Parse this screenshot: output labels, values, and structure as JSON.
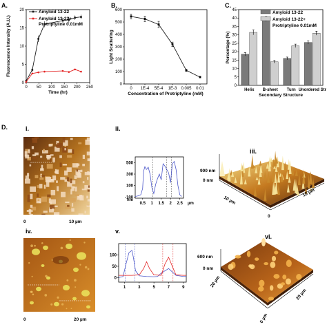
{
  "colors": {
    "series_black": "#1a1a1a",
    "series_red": "#e32323",
    "bar_dark": "#7a7a7a",
    "bar_light": "#cfcfcf",
    "profile_blue": "#4a56c9",
    "afm_dark": "#6b3a12",
    "afm_light": "#f2d87a"
  },
  "panels": {
    "A": "A.",
    "B": "B.",
    "C": "C.",
    "D": "D.",
    "i": "i.",
    "ii": "ii.",
    "iii": "iii.",
    "iv": "iv.",
    "v": "v.",
    "vi": "vi."
  },
  "chart_data": [
    {
      "id": "A",
      "type": "line",
      "xlabel": "Time (hr)",
      "ylabel": "Fluorescence Intensity (A.U.)",
      "xlim": [
        0,
        250
      ],
      "ylim": [
        0,
        20
      ],
      "xticks": [
        "0",
        "50",
        "100",
        "150",
        "200",
        "250"
      ],
      "yticks": [
        "0",
        "5",
        "10",
        "15",
        "20"
      ],
      "series": [
        {
          "name": "Amyloid 13-22",
          "x": [
            0,
            24,
            48,
            72,
            144,
            168,
            192,
            216
          ],
          "y": [
            0.5,
            3.5,
            12,
            16,
            17,
            17.2,
            17.8,
            18
          ],
          "err": [
            0.3,
            0.5,
            0.9,
            0.8,
            0.7,
            0.8,
            0.6,
            0.6
          ]
        },
        {
          "name": "Amyloid 13-22+ Protriptyline 0.01mM",
          "x": [
            0,
            24,
            48,
            72,
            144,
            168,
            192,
            216
          ],
          "y": [
            0.2,
            2.5,
            2.8,
            3.0,
            3.2,
            2.9,
            3.6,
            3.0
          ],
          "err": [
            0.1,
            0.2,
            0.2,
            0.2,
            0.2,
            0.2,
            0.2,
            0.2
          ]
        }
      ]
    },
    {
      "id": "B",
      "type": "line",
      "xlabel": "Concentration of Protriptyline (mM)",
      "ylabel": "Light Scattering",
      "categories": [
        "0",
        "1E-4",
        "5E-4",
        "1E-3",
        "0.005",
        "0.01"
      ],
      "ylim": [
        0,
        600
      ],
      "yticks": [
        "0",
        "100",
        "200",
        "300",
        "400",
        "500",
        "600"
      ],
      "series": [
        {
          "values": [
            545,
            525,
            480,
            320,
            110,
            55
          ],
          "err": [
            20,
            22,
            25,
            18,
            8,
            6
          ]
        }
      ]
    },
    {
      "id": "C",
      "type": "bar",
      "xlabel": "Secondary Structure",
      "ylabel": "Percentage (%)",
      "categories": [
        "Helix",
        "B-sheet",
        "Turn",
        "Unordered Str"
      ],
      "ylim": [
        0,
        45
      ],
      "yticks": [
        "0",
        "5",
        "10",
        "15",
        "20",
        "25",
        "30",
        "35",
        "40",
        "45"
      ],
      "series": [
        {
          "name": "Amyloid 13-22",
          "values": [
            18.5,
            39.5,
            16,
            25.5
          ],
          "err": [
            1,
            1.5,
            0.8,
            1
          ]
        },
        {
          "name": "Amyloid 13-22+ Protriptyline 0.01mM",
          "values": [
            31.5,
            14,
            23.5,
            31
          ],
          "err": [
            1.5,
            0.8,
            1,
            1.2
          ]
        }
      ]
    },
    {
      "id": "ii",
      "type": "line",
      "xlabel": "µm",
      "ylabel": "nm",
      "xticks": [
        "0.5",
        "1",
        "1.5",
        "2",
        "2.5"
      ],
      "yticks": [
        "500",
        "300",
        "100",
        "-100"
      ],
      "xlim": [
        0.1,
        2.7
      ],
      "ylim": [
        -120,
        600
      ],
      "series": [
        {
          "x": [
            0.1,
            0.25,
            0.4,
            0.5,
            0.55,
            0.62,
            0.7,
            0.8,
            0.9,
            1.0,
            1.1,
            1.2,
            1.3,
            1.4,
            1.5,
            1.6,
            1.7,
            1.8,
            1.9,
            2.0,
            2.1,
            2.2,
            2.3,
            2.4,
            2.5,
            2.6
          ],
          "y": [
            -90,
            -80,
            -60,
            50,
            350,
            430,
            380,
            420,
            300,
            60,
            -40,
            120,
            220,
            300,
            200,
            480,
            440,
            380,
            320,
            150,
            480,
            520,
            380,
            100,
            -60,
            -90
          ]
        }
      ]
    },
    {
      "id": "v",
      "type": "line",
      "xticks": [
        "1",
        "3",
        "5",
        "7",
        "9"
      ],
      "yticks": [
        "0",
        "50",
        "100"
      ],
      "xlim": [
        0.2,
        9.4
      ],
      "ylim": [
        -20,
        150
      ],
      "series": [
        {
          "x": [
            0.2,
            0.8,
            1.2,
            1.6,
            2.0,
            2.2,
            2.5,
            3.0,
            4.0,
            5.0,
            5.5,
            6.0,
            7.0,
            8.0,
            9.0,
            9.4
          ],
          "y": [
            0,
            5,
            60,
            110,
            120,
            90,
            30,
            8,
            5,
            4,
            5,
            20,
            40,
            10,
            5,
            5
          ]
        },
        {
          "x": [
            0.2,
            2.0,
            3.0,
            3.6,
            4.0,
            4.4,
            5.0,
            6.0,
            6.5,
            7.0,
            7.5,
            8.0,
            9.0,
            9.4
          ],
          "y": [
            10,
            10,
            12,
            40,
            70,
            40,
            12,
            10,
            60,
            90,
            50,
            12,
            10,
            10
          ]
        }
      ]
    }
  ],
  "afm": {
    "i_scale_start": "0",
    "i_scale_end": "10 µm",
    "iv_scale_start": "0",
    "iv_scale_end": "20 µm",
    "iii_z_top": "900 nm",
    "iii_z_bottom": "0 nm",
    "iii_x": "10 µm",
    "iii_y": "10 µm",
    "iii_corner": "0",
    "vi_z_top": "600 nm",
    "vi_z_bottom": "0 nm",
    "vi_x": "20 µm",
    "vi_y": "20 µm",
    "vi_corner": "0 µm"
  }
}
